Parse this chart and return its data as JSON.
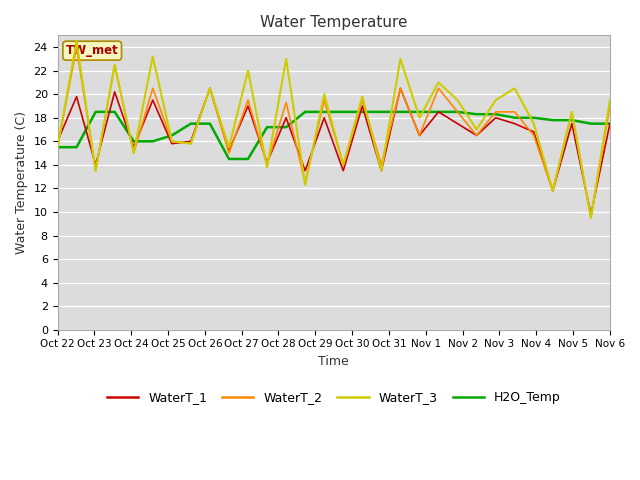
{
  "title": "Water Temperature",
  "xlabel": "Time",
  "ylabel": "Water Temperature (C)",
  "ylim": [
    0,
    25
  ],
  "yticks": [
    0,
    2,
    4,
    6,
    8,
    10,
    12,
    14,
    16,
    18,
    20,
    22,
    24
  ],
  "annotation": "TW_met",
  "bg_color": "#dcdcdc",
  "x_labels": [
    "Oct 22",
    "Oct 23",
    "Oct 24",
    "Oct 25",
    "Oct 26",
    "Oct 27",
    "Oct 28",
    "Oct 29",
    "Oct 30",
    "Oct 31",
    "Nov 1",
    "Nov 2",
    "Nov 3",
    "Nov 4",
    "Nov 5",
    "Nov 6"
  ],
  "WaterT_1": [
    16.0,
    19.8,
    14.0,
    20.2,
    15.5,
    19.5,
    15.8,
    16.0,
    20.5,
    15.2,
    19.0,
    14.2,
    18.0,
    13.5,
    18.0,
    13.5,
    19.0,
    13.5,
    20.5,
    16.5,
    18.5,
    17.5,
    16.5,
    18.0,
    17.5,
    16.8,
    11.8,
    17.5,
    9.8,
    17.5
  ],
  "WaterT_2": [
    15.5,
    24.0,
    13.5,
    22.5,
    15.0,
    20.5,
    16.0,
    15.8,
    20.5,
    15.0,
    19.5,
    14.0,
    19.3,
    12.5,
    19.5,
    14.0,
    19.5,
    14.0,
    20.5,
    16.5,
    20.5,
    18.5,
    16.5,
    18.5,
    18.5,
    16.5,
    11.8,
    18.5,
    9.5,
    19.0
  ],
  "WaterT_3": [
    15.5,
    24.5,
    13.5,
    22.5,
    15.0,
    23.2,
    16.0,
    15.8,
    20.5,
    15.5,
    22.0,
    13.8,
    23.0,
    12.3,
    20.0,
    14.0,
    19.8,
    13.5,
    23.0,
    18.0,
    21.0,
    19.5,
    17.0,
    19.5,
    20.5,
    17.5,
    11.8,
    18.5,
    9.5,
    19.5
  ],
  "H2O_Temp": [
    15.5,
    15.5,
    18.5,
    18.5,
    16.0,
    16.0,
    16.5,
    17.5,
    17.5,
    14.5,
    14.5,
    17.2,
    17.2,
    18.5,
    18.5,
    18.5,
    18.5,
    18.5,
    18.5,
    18.5,
    18.5,
    18.5,
    18.3,
    18.3,
    18.0,
    18.0,
    17.8,
    17.8,
    17.5,
    17.5
  ],
  "color_1": "#cc0000",
  "color_2": "#ff8800",
  "color_3": "#cccc00",
  "color_h2o": "#00aa00",
  "legend_labels": [
    "WaterT_1",
    "WaterT_2",
    "WaterT_3",
    "H2O_Temp"
  ],
  "n_days": 16,
  "pts_per_day": 2
}
